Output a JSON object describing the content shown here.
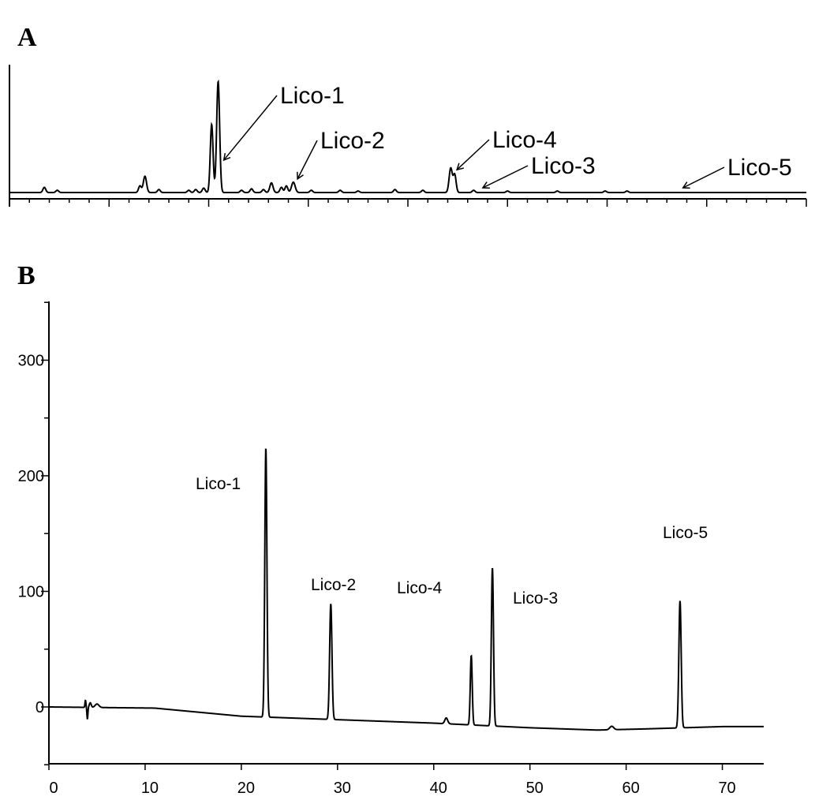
{
  "chart_data": [
    {
      "type": "line",
      "panel": "A",
      "x_ticks_labeled": [],
      "y_ticks_labeled": [],
      "xlim": [
        0,
        80
      ],
      "ylim": [
        0,
        160
      ],
      "grid": false,
      "annotations": [
        {
          "text": "Lico-1",
          "x": 21.2
        },
        {
          "text": "Lico-2",
          "x": 28.6
        },
        {
          "text": "Lico-4",
          "x": 44.6
        },
        {
          "text": "Lico-3",
          "x": 47.2
        },
        {
          "text": "Lico-5",
          "x": 67.3
        }
      ],
      "peaks": [
        {
          "x": 3.5,
          "y": 7,
          "w": 0.14
        },
        {
          "x": 4.8,
          "y": 3,
          "w": 0.14
        },
        {
          "x": 13.1,
          "y": 9,
          "w": 0.14
        },
        {
          "x": 13.6,
          "y": 22,
          "w": 0.16
        },
        {
          "x": 15.0,
          "y": 4,
          "w": 0.14
        },
        {
          "x": 18.0,
          "y": 3,
          "w": 0.14
        },
        {
          "x": 18.7,
          "y": 4,
          "w": 0.14
        },
        {
          "x": 19.5,
          "y": 6,
          "w": 0.14
        },
        {
          "x": 20.3,
          "y": 92,
          "w": 0.14
        },
        {
          "x": 20.95,
          "y": 150,
          "w": 0.15
        },
        {
          "x": 23.3,
          "y": 3,
          "w": 0.14
        },
        {
          "x": 24.3,
          "y": 5,
          "w": 0.14
        },
        {
          "x": 25.5,
          "y": 4,
          "w": 0.14
        },
        {
          "x": 26.3,
          "y": 13,
          "w": 0.16
        },
        {
          "x": 27.3,
          "y": 7,
          "w": 0.14
        },
        {
          "x": 27.8,
          "y": 9,
          "w": 0.14
        },
        {
          "x": 28.5,
          "y": 14,
          "w": 0.18
        },
        {
          "x": 30.3,
          "y": 3,
          "w": 0.14
        },
        {
          "x": 33.2,
          "y": 3,
          "w": 0.14
        },
        {
          "x": 35.0,
          "y": 2,
          "w": 0.14
        },
        {
          "x": 38.7,
          "y": 4,
          "w": 0.14
        },
        {
          "x": 41.5,
          "y": 3,
          "w": 0.14
        },
        {
          "x": 44.3,
          "y": 33,
          "w": 0.16
        },
        {
          "x": 44.7,
          "y": 24,
          "w": 0.14
        },
        {
          "x": 46.6,
          "y": 3,
          "w": 0.14
        },
        {
          "x": 50.0,
          "y": 2,
          "w": 0.14
        },
        {
          "x": 55.0,
          "y": 2,
          "w": 0.14
        },
        {
          "x": 59.8,
          "y": 2,
          "w": 0.14
        },
        {
          "x": 62.0,
          "y": 2,
          "w": 0.14
        }
      ]
    },
    {
      "type": "line",
      "panel": "B",
      "x_ticks": [
        0,
        10,
        20,
        30,
        40,
        50,
        60,
        70
      ],
      "y_ticks": [
        0,
        100,
        200,
        300
      ],
      "xlim": [
        0,
        74.3
      ],
      "ylim": [
        -50,
        350
      ],
      "grid": false,
      "annotations": [
        {
          "text": "Lico-1",
          "x": 22.6
        },
        {
          "text": "Lico-2",
          "x": 29.3
        },
        {
          "text": "Lico-4",
          "x": 43.9
        },
        {
          "text": "Lico-3",
          "x": 46.1
        },
        {
          "text": "Lico-5",
          "x": 65.6
        }
      ],
      "baseline": [
        [
          0,
          0
        ],
        [
          11,
          -1
        ],
        [
          20,
          -8
        ],
        [
          30,
          -11
        ],
        [
          40,
          -14
        ],
        [
          45,
          -16
        ],
        [
          50,
          -18
        ],
        [
          57,
          -20
        ],
        [
          62,
          -19
        ],
        [
          66,
          -18
        ],
        [
          70,
          -17
        ],
        [
          74.3,
          -17
        ]
      ],
      "peaks": [
        {
          "x": 3.8,
          "y": 6,
          "w": 0.05
        },
        {
          "x": 4.0,
          "y": -10,
          "w": 0.05
        },
        {
          "x": 4.3,
          "y": 4,
          "w": 0.1
        },
        {
          "x": 5.0,
          "y": 3,
          "w": 0.2
        },
        {
          "x": 22.55,
          "y": 233,
          "w": 0.11
        },
        {
          "x": 29.3,
          "y": 100,
          "w": 0.12
        },
        {
          "x": 41.3,
          "y": 5,
          "w": 0.15
        },
        {
          "x": 43.9,
          "y": 60,
          "w": 0.1
        },
        {
          "x": 46.1,
          "y": 137,
          "w": 0.11
        },
        {
          "x": 58.5,
          "y": 3,
          "w": 0.2
        },
        {
          "x": 65.6,
          "y": 110,
          "w": 0.12
        }
      ]
    }
  ],
  "panel_labels": {
    "a": "A",
    "b": "B"
  }
}
